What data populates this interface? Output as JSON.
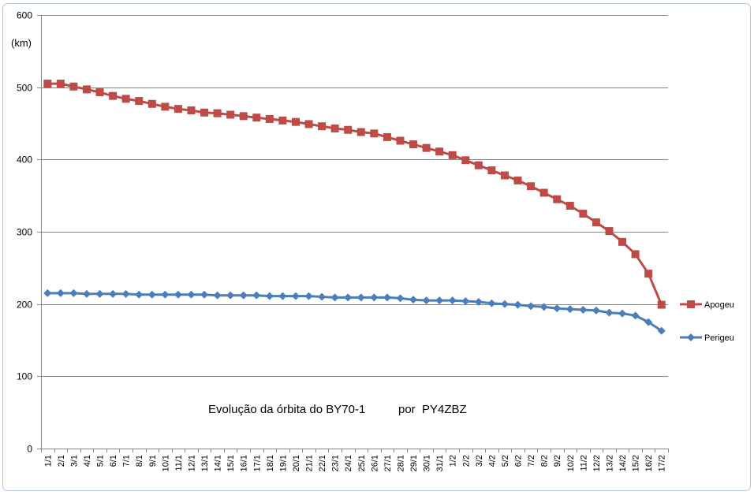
{
  "chart_data": {
    "type": "line",
    "title": "Evolução da órbita do BY70-1          por  PY4ZBZ",
    "ylabel": "(km)",
    "xlabel": "",
    "ylim": [
      0,
      600
    ],
    "yticks": [
      0,
      100,
      200,
      300,
      400,
      500,
      600
    ],
    "grid": true,
    "legend": "right",
    "categories": [
      "1/1",
      "2/1",
      "3/1",
      "4/1",
      "5/1",
      "6/1",
      "7/1",
      "8/1",
      "9/1",
      "10/1",
      "11/1",
      "12/1",
      "13/1",
      "14/1",
      "15/1",
      "16/1",
      "17/1",
      "18/1",
      "19/1",
      "20/1",
      "21/1",
      "22/1",
      "23/1",
      "24/1",
      "25/1",
      "26/1",
      "27/1",
      "28/1",
      "29/1",
      "30/1",
      "31/1",
      "1/2",
      "2/2",
      "3/2",
      "4/2",
      "5/2",
      "6/2",
      "7/2",
      "8/2",
      "9/2",
      "10/2",
      "11/2",
      "12/2",
      "13/2",
      "14/2",
      "15/2",
      "16/2",
      "17/2"
    ],
    "series": [
      {
        "name": "Apogeu",
        "color": "#be4b48",
        "marker": "square",
        "values": [
          505,
          505,
          501,
          497,
          493,
          488,
          484,
          481,
          477,
          473,
          470,
          468,
          465,
          464,
          462,
          460,
          458,
          456,
          454,
          452,
          449,
          446,
          443,
          441,
          438,
          436,
          431,
          426,
          421,
          416,
          411,
          406,
          399,
          392,
          385,
          378,
          371,
          363,
          354,
          345,
          336,
          325,
          313,
          301,
          286,
          269,
          242,
          199
        ]
      },
      {
        "name": "Perigeu",
        "color": "#4a7ebb",
        "marker": "diamond",
        "values": [
          215,
          215,
          215,
          214,
          214,
          214,
          214,
          213,
          213,
          213,
          213,
          213,
          213,
          212,
          212,
          212,
          212,
          211,
          211,
          211,
          211,
          210,
          209,
          209,
          209,
          209,
          209,
          208,
          206,
          205,
          205,
          205,
          204,
          203,
          201,
          200,
          199,
          197,
          196,
          194,
          193,
          192,
          191,
          188,
          187,
          184,
          175,
          163
        ]
      }
    ]
  }
}
